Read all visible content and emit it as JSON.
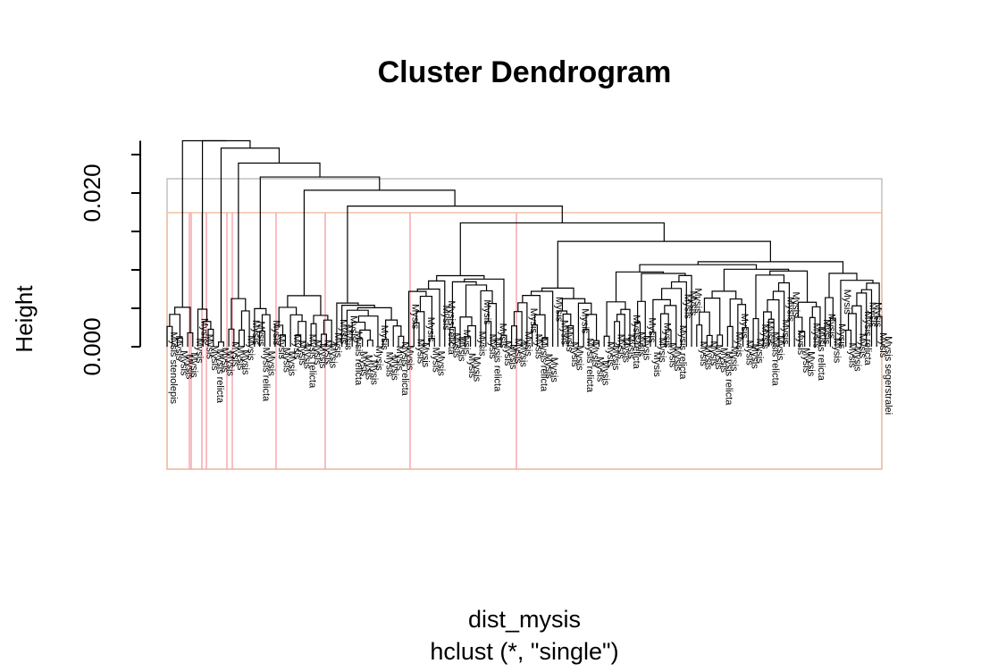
{
  "chart_data": {
    "type": "dendrogram",
    "title": "Cluster Dendrogram",
    "xlabel": "dist_mysis",
    "sublabel": "hclust (*, \"single\")",
    "ylabel": "Height",
    "y_ticks": [
      "0.000",
      "0.020"
    ],
    "ylim": [
      0,
      0.03
    ],
    "linkage": "single",
    "leaf_label_prefix": "Mysis",
    "visible_leaf_labels": [
      "Mysis stenolepis",
      "Mysis relicta",
      "Mysis segerstralei"
    ],
    "leaf_count": 140,
    "cluster_rect_colors": [
      "#f4c0a4",
      "#f5a8b0",
      "#c0c0c0"
    ]
  }
}
